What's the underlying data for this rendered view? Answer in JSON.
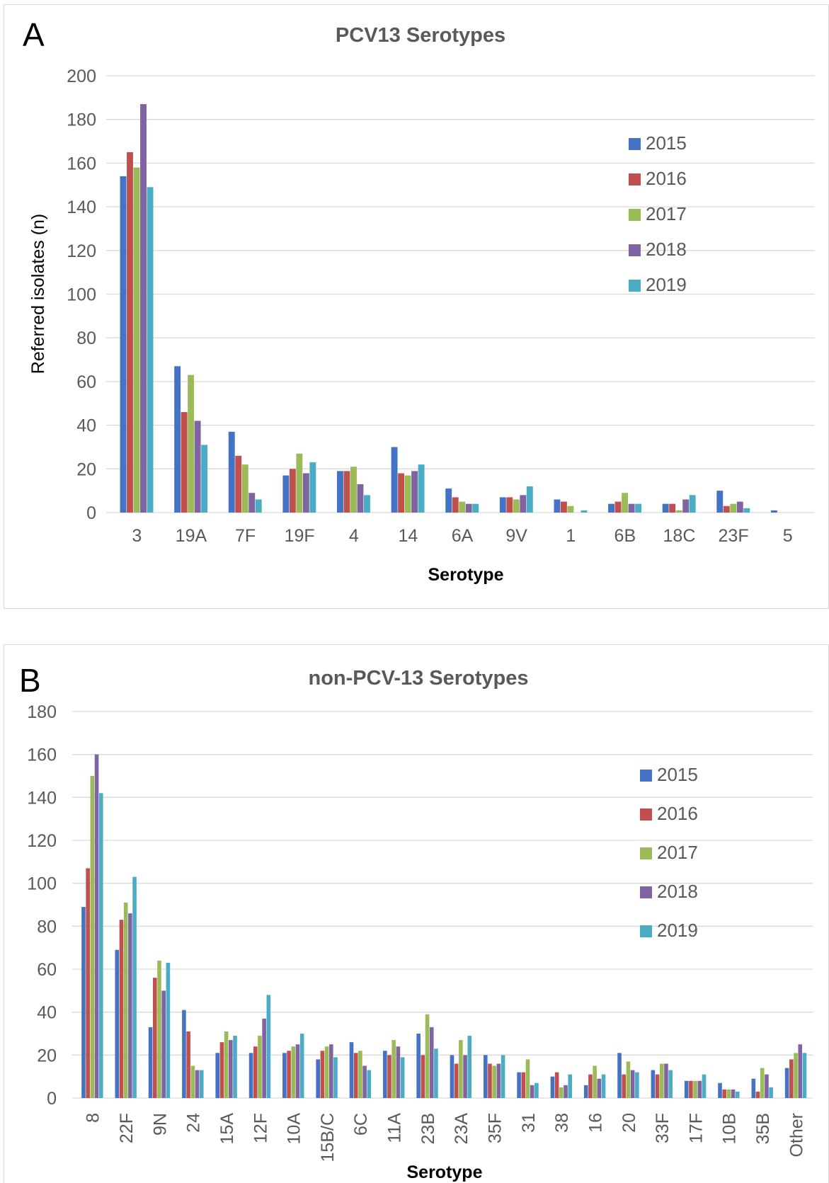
{
  "chart_data": [
    {
      "type": "bar",
      "panel_label": "A",
      "title": "PCV13 Serotypes",
      "xlabel": "Serotype",
      "ylabel": "Referred isolates (n)",
      "ylim": [
        0,
        200
      ],
      "ytick_step": 20,
      "grid": true,
      "legend_position": "right",
      "categories": [
        "3",
        "19A",
        "7F",
        "19F",
        "4",
        "14",
        "6A",
        "9V",
        "1",
        "6B",
        "18C",
        "23F",
        "5"
      ],
      "series": [
        {
          "name": "2015",
          "color": "#4472C4",
          "values": [
            154,
            67,
            37,
            17,
            19,
            30,
            11,
            7,
            6,
            4,
            4,
            10,
            1
          ]
        },
        {
          "name": "2016",
          "color": "#C0504D",
          "values": [
            165,
            46,
            26,
            20,
            19,
            18,
            7,
            7,
            5,
            5,
            4,
            3,
            0
          ]
        },
        {
          "name": "2017",
          "color": "#9BBB59",
          "values": [
            158,
            63,
            22,
            27,
            21,
            17,
            5,
            6,
            3,
            9,
            1,
            4,
            0
          ]
        },
        {
          "name": "2018",
          "color": "#8064A2",
          "values": [
            187,
            42,
            9,
            18,
            13,
            19,
            4,
            8,
            0,
            4,
            6,
            5,
            0
          ]
        },
        {
          "name": "2019",
          "color": "#4BACC6",
          "values": [
            149,
            31,
            6,
            23,
            8,
            22,
            4,
            12,
            1,
            4,
            8,
            2,
            0
          ]
        }
      ]
    },
    {
      "type": "bar",
      "panel_label": "B",
      "title": "non-PCV-13 Serotypes",
      "xlabel": "Serotype",
      "ylabel": "",
      "ylim": [
        0,
        180
      ],
      "ytick_step": 20,
      "grid": true,
      "legend_position": "right",
      "categories": [
        "8",
        "22F",
        "9N",
        "24",
        "15A",
        "12F",
        "10A",
        "15B/C",
        "6C",
        "11A",
        "23B",
        "23A",
        "35F",
        "31",
        "38",
        "16",
        "20",
        "33F",
        "17F",
        "10B",
        "35B",
        "Other"
      ],
      "series": [
        {
          "name": "2015",
          "color": "#4472C4",
          "values": [
            89,
            69,
            33,
            41,
            21,
            21,
            21,
            18,
            26,
            22,
            30,
            20,
            20,
            12,
            10,
            6,
            21,
            13,
            8,
            7,
            9,
            14
          ]
        },
        {
          "name": "2016",
          "color": "#C0504D",
          "values": [
            107,
            83,
            56,
            31,
            26,
            24,
            22,
            22,
            21,
            20,
            20,
            16,
            16,
            12,
            12,
            11,
            11,
            11,
            8,
            4,
            3,
            18
          ]
        },
        {
          "name": "2017",
          "color": "#9BBB59",
          "values": [
            150,
            91,
            64,
            15,
            31,
            29,
            24,
            24,
            22,
            27,
            39,
            27,
            15,
            18,
            5,
            15,
            17,
            16,
            8,
            4,
            14,
            21
          ]
        },
        {
          "name": "2018",
          "color": "#8064A2",
          "values": [
            160,
            86,
            50,
            13,
            27,
            37,
            25,
            25,
            15,
            24,
            33,
            20,
            16,
            6,
            6,
            9,
            13,
            16,
            8,
            4,
            11,
            25
          ]
        },
        {
          "name": "2019",
          "color": "#4BACC6",
          "values": [
            142,
            103,
            63,
            13,
            29,
            48,
            30,
            19,
            13,
            19,
            23,
            29,
            20,
            7,
            11,
            11,
            12,
            13,
            11,
            3,
            5,
            21
          ]
        }
      ]
    }
  ]
}
